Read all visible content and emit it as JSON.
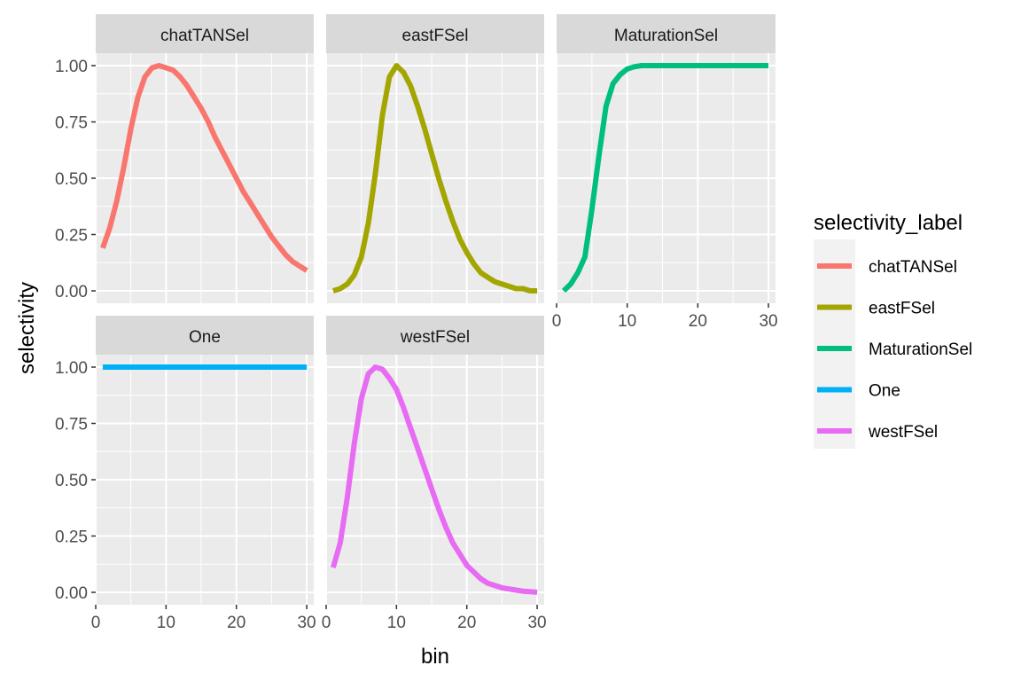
{
  "chart_data": {
    "type": "line",
    "xlabel": "bin",
    "ylabel": "selectivity",
    "xlim": [
      0,
      31
    ],
    "ylim": [
      0,
      1
    ],
    "x_ticks": [
      0,
      10,
      20,
      30
    ],
    "y_ticks": [
      "0.00",
      "0.25",
      "0.50",
      "0.75",
      "1.00"
    ],
    "grid": true,
    "legend": {
      "title": "selectivity_label",
      "placement": "right"
    },
    "x": [
      1,
      2,
      3,
      4,
      5,
      6,
      7,
      8,
      9,
      10,
      11,
      12,
      13,
      14,
      15,
      16,
      17,
      18,
      19,
      20,
      21,
      22,
      23,
      24,
      25,
      26,
      27,
      28,
      29,
      30
    ],
    "series": [
      {
        "name": "chatTANSel",
        "color": "#F8766D",
        "values": [
          0.19,
          0.28,
          0.4,
          0.55,
          0.72,
          0.86,
          0.95,
          0.99,
          1.0,
          0.99,
          0.98,
          0.95,
          0.91,
          0.86,
          0.81,
          0.75,
          0.68,
          0.62,
          0.56,
          0.5,
          0.44,
          0.39,
          0.34,
          0.29,
          0.24,
          0.2,
          0.16,
          0.13,
          0.11,
          0.09
        ]
      },
      {
        "name": "eastFSel",
        "color": "#A3A500",
        "values": [
          0.0,
          0.01,
          0.03,
          0.07,
          0.15,
          0.3,
          0.52,
          0.78,
          0.95,
          1.0,
          0.97,
          0.91,
          0.82,
          0.72,
          0.61,
          0.5,
          0.4,
          0.31,
          0.23,
          0.17,
          0.12,
          0.08,
          0.06,
          0.04,
          0.03,
          0.02,
          0.01,
          0.01,
          0.0,
          0.0
        ]
      },
      {
        "name": "MaturationSel",
        "color": "#00BF7D",
        "values": [
          0.0,
          0.03,
          0.08,
          0.15,
          0.36,
          0.6,
          0.82,
          0.92,
          0.96,
          0.985,
          0.995,
          1.0,
          1.0,
          1.0,
          1.0,
          1.0,
          1.0,
          1.0,
          1.0,
          1.0,
          1.0,
          1.0,
          1.0,
          1.0,
          1.0,
          1.0,
          1.0,
          1.0,
          1.0,
          1.0
        ]
      },
      {
        "name": "One",
        "color": "#00B0F6",
        "values": [
          1,
          1,
          1,
          1,
          1,
          1,
          1,
          1,
          1,
          1,
          1,
          1,
          1,
          1,
          1,
          1,
          1,
          1,
          1,
          1,
          1,
          1,
          1,
          1,
          1,
          1,
          1,
          1,
          1,
          1
        ]
      },
      {
        "name": "westFSel",
        "color": "#E76BF3",
        "values": [
          0.11,
          0.22,
          0.42,
          0.66,
          0.86,
          0.97,
          1.0,
          0.99,
          0.95,
          0.9,
          0.82,
          0.73,
          0.64,
          0.55,
          0.46,
          0.37,
          0.29,
          0.22,
          0.17,
          0.12,
          0.09,
          0.06,
          0.04,
          0.03,
          0.02,
          0.015,
          0.01,
          0.005,
          0.003,
          0.0
        ]
      }
    ],
    "panels": [
      {
        "strip": "chatTANSel",
        "series": "chatTANSel",
        "show_y_ticks": true,
        "show_x_ticks": false
      },
      {
        "strip": "eastFSel",
        "series": "eastFSel",
        "show_y_ticks": false,
        "show_x_ticks": false
      },
      {
        "strip": "MaturationSel",
        "series": "MaturationSel",
        "show_y_ticks": false,
        "show_x_ticks": true
      },
      {
        "strip": "One",
        "series": "One",
        "show_y_ticks": true,
        "show_x_ticks": true
      },
      {
        "strip": "westFSel",
        "series": "westFSel",
        "show_y_ticks": false,
        "show_x_ticks": true
      }
    ]
  }
}
